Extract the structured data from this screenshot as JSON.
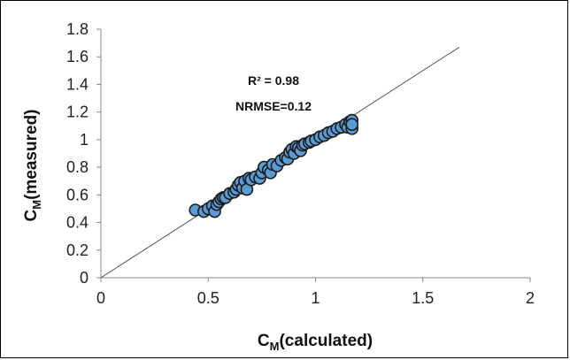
{
  "chart_data": {
    "type": "scatter",
    "title": "",
    "xlabel": {
      "main": "C",
      "sub": "M",
      "rest": "(calculated)"
    },
    "ylabel": {
      "main": "C",
      "sub": "M",
      "rest": "(measured)"
    },
    "xlim": [
      0,
      2
    ],
    "ylim": [
      0,
      1.8
    ],
    "xticks": [
      0,
      0.5,
      1,
      1.5,
      2
    ],
    "xtick_labels": [
      "0",
      "0.5",
      "1",
      "1.5",
      "2"
    ],
    "yticks": [
      0,
      0.2,
      0.4,
      0.6,
      0.8,
      1,
      1.2,
      1.4,
      1.6,
      1.8
    ],
    "ytick_labels": [
      "0",
      "0.2",
      "0.4",
      "0.6",
      "0.8",
      "1",
      "1.2",
      "1.4",
      "1.6",
      "1.8"
    ],
    "grid": false,
    "legend": "none",
    "annotations": [
      "R² = 0.98",
      "NRMSE=0.12"
    ],
    "reference_line": {
      "x": [
        0,
        1.67
      ],
      "y": [
        0,
        1.67
      ]
    },
    "marker_color": "#5b9bd5",
    "marker_edge_color": "#1a1a1a",
    "series": [
      {
        "points": [
          [
            0.44,
            0.49
          ],
          [
            0.48,
            0.48
          ],
          [
            0.5,
            0.5
          ],
          [
            0.52,
            0.52
          ],
          [
            0.53,
            0.48
          ],
          [
            0.54,
            0.53
          ],
          [
            0.55,
            0.55
          ],
          [
            0.56,
            0.57
          ],
          [
            0.57,
            0.58
          ],
          [
            0.58,
            0.58
          ],
          [
            0.6,
            0.61
          ],
          [
            0.62,
            0.62
          ],
          [
            0.63,
            0.64
          ],
          [
            0.64,
            0.67
          ],
          [
            0.65,
            0.69
          ],
          [
            0.66,
            0.65
          ],
          [
            0.67,
            0.7
          ],
          [
            0.68,
            0.64
          ],
          [
            0.69,
            0.72
          ],
          [
            0.7,
            0.71
          ],
          [
            0.72,
            0.73
          ],
          [
            0.74,
            0.72
          ],
          [
            0.75,
            0.76
          ],
          [
            0.76,
            0.8
          ],
          [
            0.78,
            0.78
          ],
          [
            0.79,
            0.76
          ],
          [
            0.8,
            0.82
          ],
          [
            0.82,
            0.81
          ],
          [
            0.84,
            0.85
          ],
          [
            0.86,
            0.87
          ],
          [
            0.87,
            0.86
          ],
          [
            0.88,
            0.91
          ],
          [
            0.89,
            0.93
          ],
          [
            0.9,
            0.9
          ],
          [
            0.91,
            0.95
          ],
          [
            0.92,
            0.94
          ],
          [
            0.93,
            0.92
          ],
          [
            0.94,
            0.96
          ],
          [
            0.95,
            0.97
          ],
          [
            0.97,
            0.98
          ],
          [
            0.98,
            0.99
          ],
          [
            1.0,
            1.0
          ],
          [
            1.02,
            1.02
          ],
          [
            1.04,
            1.03
          ],
          [
            1.06,
            1.05
          ],
          [
            1.08,
            1.06
          ],
          [
            1.1,
            1.08
          ],
          [
            1.12,
            1.09
          ],
          [
            1.14,
            1.11
          ],
          [
            1.15,
            1.09
          ],
          [
            1.16,
            1.13
          ],
          [
            1.17,
            1.14
          ],
          [
            1.17,
            1.08
          ],
          [
            1.17,
            1.11
          ]
        ]
      }
    ]
  }
}
